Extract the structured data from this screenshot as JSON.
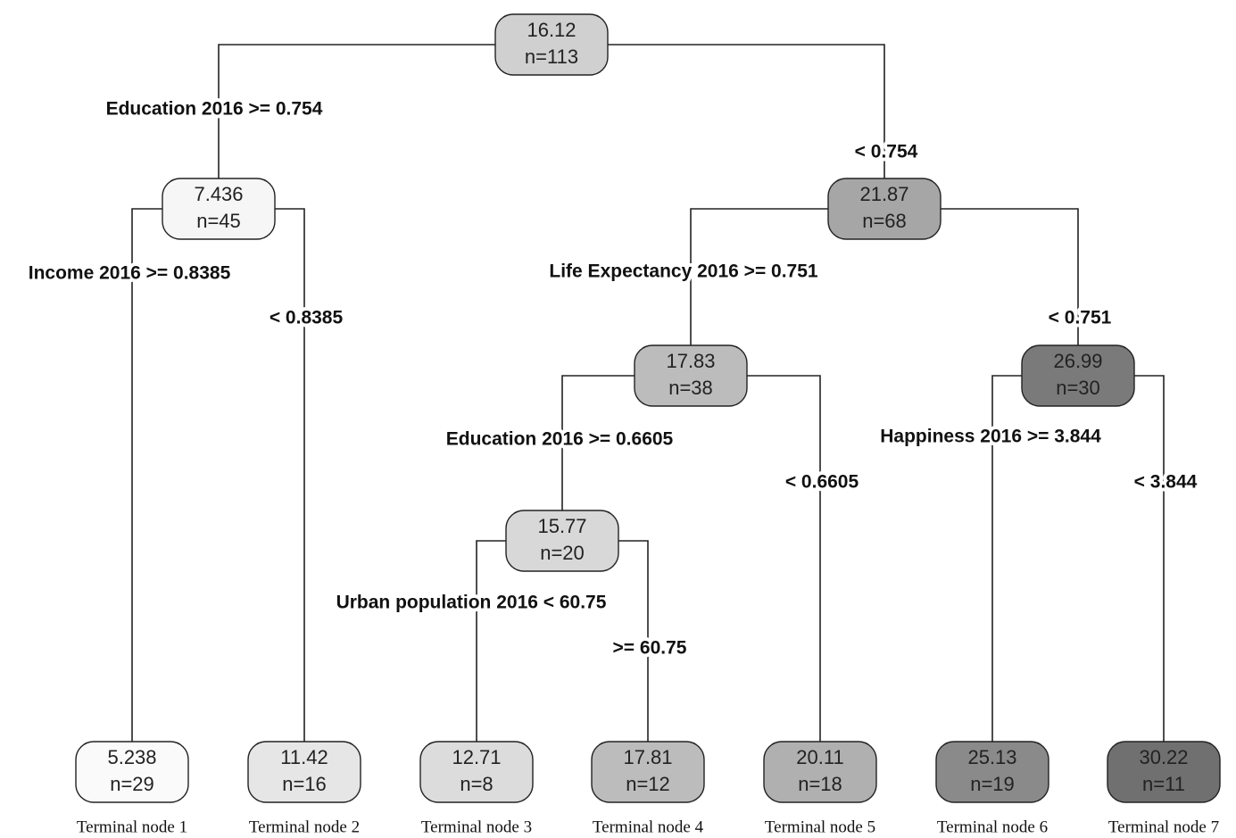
{
  "nodes": [
    {
      "value": "16.12",
      "count": "n=113",
      "fill": "#d0d0d0"
    },
    {
      "value": "7.436",
      "count": "n=45",
      "fill": "#f6f6f6"
    },
    {
      "value": "21.87",
      "count": "n=68",
      "fill": "#a6a6a6"
    },
    {
      "value": "17.83",
      "count": "n=38",
      "fill": "#bcbcbc"
    },
    {
      "value": "26.99",
      "count": "n=30",
      "fill": "#7a7a7a"
    },
    {
      "value": "15.77",
      "count": "n=20",
      "fill": "#d8d8d8"
    },
    {
      "value": "5.238",
      "count": "n=29",
      "fill": "#fafafa"
    },
    {
      "value": "11.42",
      "count": "n=16",
      "fill": "#e6e6e6"
    },
    {
      "value": "12.71",
      "count": "n=8",
      "fill": "#dcdcdc"
    },
    {
      "value": "17.81",
      "count": "n=12",
      "fill": "#bcbcbc"
    },
    {
      "value": "20.11",
      "count": "n=18",
      "fill": "#b0b0b0"
    },
    {
      "value": "25.13",
      "count": "n=19",
      "fill": "#8a8a8a"
    },
    {
      "value": "30.22",
      "count": "n=11",
      "fill": "#707070"
    }
  ],
  "splits": [
    {
      "parent": 0,
      "left": 1,
      "right": 2,
      "left_label": "Education 2016 >= 0.754",
      "right_label": "< 0.754"
    },
    {
      "parent": 1,
      "left": 6,
      "right": 7,
      "left_label": "Income 2016 >= 0.8385",
      "right_label": "< 0.8385"
    },
    {
      "parent": 2,
      "left": 3,
      "right": 4,
      "left_label": "Life Expectancy 2016 >= 0.751",
      "right_label": "< 0.751"
    },
    {
      "parent": 3,
      "left": 5,
      "right": 10,
      "left_label": "Education 2016 >= 0.6605",
      "right_label": "< 0.6605"
    },
    {
      "parent": 4,
      "left": 11,
      "right": 12,
      "left_label": "Happiness 2016 >= 3.844",
      "right_label": "< 3.844"
    },
    {
      "parent": 5,
      "left": 8,
      "right": 9,
      "left_label": "Urban population 2016 < 60.75",
      "right_label": ">= 60.75"
    }
  ],
  "terminal_labels": [
    "Terminal node 1",
    "Terminal node 2",
    "Terminal node 3",
    "Terminal node 4",
    "Terminal node 5",
    "Terminal node 6",
    "Terminal node 7"
  ]
}
